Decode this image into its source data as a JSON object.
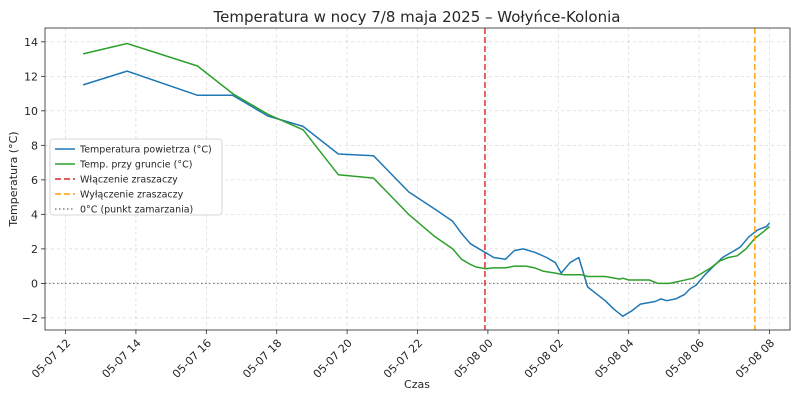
{
  "chart_data": {
    "type": "line",
    "title": "Temperatura w nocy 7/8 maja 2025 – Wołyńce-Kolonia",
    "xlabel": "Czas",
    "ylabel": "Temperatura (°C)",
    "xlim": [
      "2025-05-07 11:25",
      "2025-05-08 08:35"
    ],
    "ylim": [
      -2.7,
      14.8
    ],
    "grid": true,
    "legend_position": "center-left",
    "x_ticks": [
      {
        "t": "2025-05-07 12:00",
        "label": "05-07 12"
      },
      {
        "t": "2025-05-07 14:00",
        "label": "05-07 14"
      },
      {
        "t": "2025-05-07 16:00",
        "label": "05-07 16"
      },
      {
        "t": "2025-05-07 18:00",
        "label": "05-07 18"
      },
      {
        "t": "2025-05-07 20:00",
        "label": "05-07 20"
      },
      {
        "t": "2025-05-07 22:00",
        "label": "05-07 22"
      },
      {
        "t": "2025-05-08 00:00",
        "label": "05-08 00"
      },
      {
        "t": "2025-05-08 02:00",
        "label": "05-08 02"
      },
      {
        "t": "2025-05-08 04:00",
        "label": "05-08 04"
      },
      {
        "t": "2025-05-08 06:00",
        "label": "05-08 06"
      },
      {
        "t": "2025-05-08 08:00",
        "label": "05-08 08"
      }
    ],
    "y_ticks": [
      {
        "v": -2,
        "label": "−2"
      },
      {
        "v": 0,
        "label": "0"
      },
      {
        "v": 2,
        "label": "2"
      },
      {
        "v": 4,
        "label": "4"
      },
      {
        "v": 6,
        "label": "6"
      },
      {
        "v": 8,
        "label": "8"
      },
      {
        "v": 10,
        "label": "10"
      },
      {
        "v": 12,
        "label": "12"
      },
      {
        "v": 14,
        "label": "14"
      }
    ],
    "series": [
      {
        "name": "Temperatura powietrza (°C)",
        "color": "#1f77b4",
        "style": "solid",
        "points": [
          [
            "2025-05-07 12:30",
            11.5
          ],
          [
            "2025-05-07 13:45",
            12.3
          ],
          [
            "2025-05-07 15:45",
            10.9
          ],
          [
            "2025-05-07 16:45",
            10.9
          ],
          [
            "2025-05-07 17:45",
            9.7
          ],
          [
            "2025-05-07 18:45",
            9.1
          ],
          [
            "2025-05-07 19:45",
            7.5
          ],
          [
            "2025-05-07 20:45",
            7.4
          ],
          [
            "2025-05-07 21:45",
            5.3
          ],
          [
            "2025-05-07 22:30",
            4.3
          ],
          [
            "2025-05-07 23:00",
            3.6
          ],
          [
            "2025-05-07 23:15",
            2.9
          ],
          [
            "2025-05-07 23:30",
            2.3
          ],
          [
            "2025-05-07 23:40",
            2.1
          ],
          [
            "2025-05-07 23:55",
            1.8
          ],
          [
            "2025-05-08 00:10",
            1.5
          ],
          [
            "2025-05-08 00:30",
            1.4
          ],
          [
            "2025-05-08 00:45",
            1.9
          ],
          [
            "2025-05-08 01:00",
            2.0
          ],
          [
            "2025-05-08 01:20",
            1.8
          ],
          [
            "2025-05-08 01:40",
            1.5
          ],
          [
            "2025-05-08 01:55",
            1.2
          ],
          [
            "2025-05-08 02:05",
            0.6
          ],
          [
            "2025-05-08 02:20",
            1.2
          ],
          [
            "2025-05-08 02:35",
            1.5
          ],
          [
            "2025-05-08 02:50",
            -0.2
          ],
          [
            "2025-05-08 03:05",
            -0.6
          ],
          [
            "2025-05-08 03:20",
            -1.0
          ],
          [
            "2025-05-08 03:35",
            -1.5
          ],
          [
            "2025-05-08 03:50",
            -1.9
          ],
          [
            "2025-05-08 04:05",
            -1.6
          ],
          [
            "2025-05-08 04:20",
            -1.2
          ],
          [
            "2025-05-08 04:45",
            -1.05
          ],
          [
            "2025-05-08 04:55",
            -0.9
          ],
          [
            "2025-05-08 05:05",
            -1.0
          ],
          [
            "2025-05-08 05:20",
            -0.9
          ],
          [
            "2025-05-08 05:35",
            -0.65
          ],
          [
            "2025-05-08 05:45",
            -0.3
          ],
          [
            "2025-05-08 05:55",
            -0.1
          ],
          [
            "2025-05-08 06:10",
            0.5
          ],
          [
            "2025-05-08 06:25",
            1.0
          ],
          [
            "2025-05-08 06:40",
            1.5
          ],
          [
            "2025-05-08 07:00",
            1.9
          ],
          [
            "2025-05-08 07:10",
            2.1
          ],
          [
            "2025-05-08 07:25",
            2.7
          ],
          [
            "2025-05-08 07:40",
            3.1
          ],
          [
            "2025-05-08 07:55",
            3.3
          ],
          [
            "2025-05-08 08:00",
            3.5
          ]
        ]
      },
      {
        "name": "Temp. przy gruncie (°C)",
        "color": "#2ca02c",
        "style": "solid",
        "points": [
          [
            "2025-05-07 12:30",
            13.3
          ],
          [
            "2025-05-07 13:45",
            13.9
          ],
          [
            "2025-05-07 15:45",
            12.6
          ],
          [
            "2025-05-07 16:45",
            11.0
          ],
          [
            "2025-05-07 17:45",
            9.8
          ],
          [
            "2025-05-07 18:45",
            8.9
          ],
          [
            "2025-05-07 19:45",
            6.3
          ],
          [
            "2025-05-07 20:45",
            6.1
          ],
          [
            "2025-05-07 21:45",
            4.0
          ],
          [
            "2025-05-07 22:30",
            2.7
          ],
          [
            "2025-05-07 23:00",
            2.0
          ],
          [
            "2025-05-07 23:15",
            1.4
          ],
          [
            "2025-05-07 23:30",
            1.1
          ],
          [
            "2025-05-07 23:40",
            0.95
          ],
          [
            "2025-05-07 23:55",
            0.85
          ],
          [
            "2025-05-08 00:10",
            0.9
          ],
          [
            "2025-05-08 00:30",
            0.9
          ],
          [
            "2025-05-08 00:45",
            1.0
          ],
          [
            "2025-05-08 01:05",
            1.0
          ],
          [
            "2025-05-08 01:20",
            0.9
          ],
          [
            "2025-05-08 01:35",
            0.7
          ],
          [
            "2025-05-08 01:55",
            0.6
          ],
          [
            "2025-05-08 02:10",
            0.5
          ],
          [
            "2025-05-08 02:40",
            0.5
          ],
          [
            "2025-05-08 02:50",
            0.4
          ],
          [
            "2025-05-08 03:20",
            0.4
          ],
          [
            "2025-05-08 03:45",
            0.25
          ],
          [
            "2025-05-08 03:50",
            0.3
          ],
          [
            "2025-05-08 04:00",
            0.2
          ],
          [
            "2025-05-08 04:20",
            0.2
          ],
          [
            "2025-05-08 04:35",
            0.2
          ],
          [
            "2025-05-08 04:50",
            0.0
          ],
          [
            "2025-05-08 05:10",
            0.0
          ],
          [
            "2025-05-08 05:30",
            0.15
          ],
          [
            "2025-05-08 05:50",
            0.3
          ],
          [
            "2025-05-08 06:05",
            0.6
          ],
          [
            "2025-05-08 06:20",
            0.9
          ],
          [
            "2025-05-08 06:35",
            1.3
          ],
          [
            "2025-05-08 06:50",
            1.5
          ],
          [
            "2025-05-08 07:05",
            1.6
          ],
          [
            "2025-05-08 07:20",
            2.0
          ],
          [
            "2025-05-08 07:35",
            2.6
          ],
          [
            "2025-05-08 07:50",
            3.0
          ],
          [
            "2025-05-08 08:00",
            3.3
          ]
        ]
      }
    ],
    "reference_lines": [
      {
        "name": "Włączenie zraszaczy",
        "orientation": "vertical",
        "at": "2025-05-07 23:55",
        "color": "#d62728",
        "style": "dashed"
      },
      {
        "name": "Wyłączenie zraszaczy",
        "orientation": "vertical",
        "at": "2025-05-08 07:35",
        "color": "#ff9f0e",
        "style": "dashed"
      },
      {
        "name": "0°C (punkt zamarzania)",
        "orientation": "horizontal",
        "at": 0,
        "color": "#7f7f7f",
        "style": "dotted"
      }
    ]
  }
}
